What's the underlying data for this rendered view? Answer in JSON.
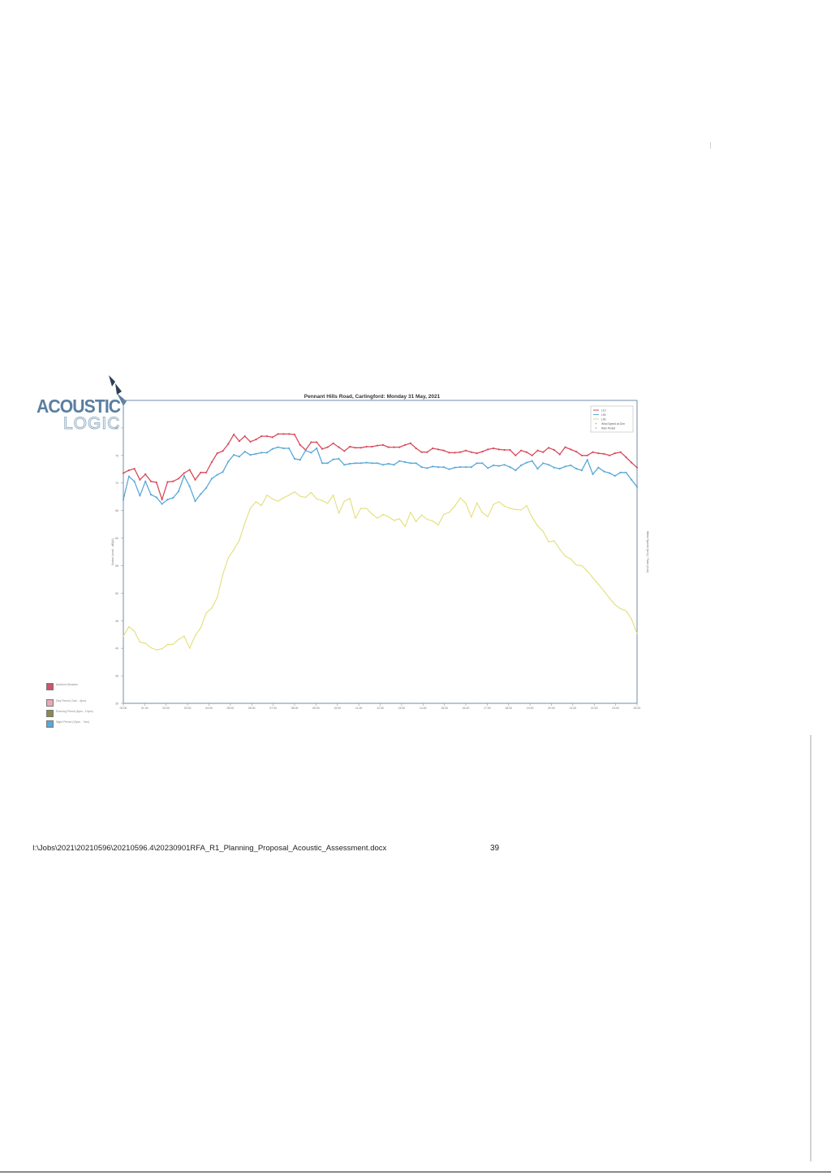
{
  "logo": {
    "line1": "ACOUSTIC",
    "line2": "LOGIC",
    "color": "#5a7fa0"
  },
  "footer": {
    "path": "I:\\Jobs\\2021\\20210596\\20210596.4\\20230901RFA_R1_Planning_Proposal_Acoustic_Assessment.docx",
    "page": "39"
  },
  "side_legend": [
    {
      "label": "Ambient Weather",
      "color": "#c9566b"
    },
    {
      "label": "Day Period (7am - 6pm)",
      "color": "#e8aab2"
    },
    {
      "label": "Evening Period (6pm - 10pm)",
      "color": "#8a8a50"
    },
    {
      "label": "Night Period (10pm - 7am)",
      "color": "#5aa8d8"
    }
  ],
  "chart_data": {
    "type": "line",
    "title": "Pennant Hills Road, Carlingford: Monday 31 May, 2021",
    "ylabel": "Noise Level - dB(A)",
    "y2label": "Wind Speed (m/s) / Rain (mm)",
    "ylim": [
      30,
      85
    ],
    "yticks": [
      30,
      35,
      40,
      45,
      50,
      55,
      60,
      65,
      70,
      75,
      80
    ],
    "xlim": [
      0,
      24
    ],
    "xticks": [
      "00:00",
      "01:00",
      "02:00",
      "03:00",
      "04:00",
      "05:00",
      "06:00",
      "07:00",
      "08:00",
      "09:00",
      "10:00",
      "11:00",
      "12:00",
      "13:00",
      "14:00",
      "15:00",
      "16:00",
      "17:00",
      "18:00",
      "19:00",
      "20:00",
      "21:00",
      "22:00",
      "23:00",
      "00:00"
    ],
    "legend_position": "top-right",
    "grid": false,
    "series": [
      {
        "name": "L10",
        "color": "#d94a5a",
        "values": [
          71.8,
          72.3,
          72.6,
          70.6,
          71.6,
          70.3,
          70.1,
          67.0,
          70.2,
          70.3,
          70.8,
          71.8,
          72.4,
          70.6,
          71.9,
          71.9,
          73.8,
          75.4,
          75.8,
          77.1,
          78.8,
          77.6,
          78.5,
          77.5,
          77.9,
          78.5,
          78.5,
          78.3,
          78.9,
          78.9,
          78.9,
          78.8,
          76.9,
          76.0,
          77.4,
          77.4,
          76.2,
          76.5,
          77.2,
          76.5,
          75.8,
          76.6,
          76.4,
          76.4,
          76.6,
          76.6,
          76.8,
          76.9,
          76.5,
          76.5,
          76.5,
          76.9,
          77.2,
          76.3,
          75.6,
          75.6,
          76.3,
          76.1,
          75.9,
          75.5,
          75.5,
          75.6,
          75.9,
          75.6,
          75.4,
          75.7,
          76.1,
          76.3,
          76.1,
          76.0,
          76.0,
          75.0,
          75.9,
          75.6,
          75.0,
          75.9,
          75.6,
          76.4,
          76.0,
          75.2,
          76.5,
          76.1,
          75.7,
          75.0,
          75.0,
          75.6,
          75.4,
          75.3,
          75.0,
          75.4,
          75.6,
          74.7,
          73.7,
          72.8
        ]
      },
      {
        "name": "L90",
        "color": "#5aa8d8",
        "values": [
          67.0,
          71.2,
          70.3,
          67.7,
          70.3,
          67.9,
          67.4,
          66.2,
          67.0,
          67.3,
          68.5,
          71.3,
          69.4,
          66.7,
          68.0,
          69.1,
          70.8,
          71.5,
          72.0,
          73.9,
          75.1,
          74.8,
          75.7,
          75.1,
          75.3,
          75.5,
          75.5,
          76.2,
          76.5,
          76.3,
          76.3,
          74.4,
          74.2,
          75.9,
          75.5,
          76.3,
          73.6,
          73.6,
          74.3,
          74.4,
          73.3,
          73.5,
          73.6,
          73.6,
          73.7,
          73.6,
          73.6,
          73.3,
          73.5,
          73.3,
          74.0,
          73.8,
          73.6,
          73.6,
          72.9,
          72.7,
          73.0,
          72.9,
          72.9,
          72.5,
          72.8,
          72.9,
          72.9,
          72.9,
          73.6,
          73.6,
          72.7,
          73.2,
          73.1,
          73.3,
          72.9,
          72.3,
          73.2,
          73.7,
          74.0,
          72.6,
          73.6,
          73.3,
          72.8,
          72.6,
          73.0,
          73.2,
          72.6,
          72.3,
          74.2,
          71.6,
          72.8,
          72.1,
          71.8,
          71.3,
          71.9,
          71.9,
          70.6,
          69.3
        ]
      },
      {
        "name": "L90",
        "color": "#e3de7a",
        "values": [
          42.2,
          43.9,
          43.1,
          41.1,
          40.9,
          40.1,
          39.7,
          39.9,
          40.7,
          40.7,
          41.6,
          42.2,
          40.0,
          42.3,
          43.7,
          46.4,
          47.3,
          49.2,
          53.4,
          56.4,
          57.9,
          59.6,
          62.7,
          65.4,
          66.6,
          65.9,
          67.8,
          67.1,
          66.7,
          67.3,
          67.8,
          68.4,
          67.6,
          67.4,
          68.3,
          67.1,
          66.8,
          66.3,
          67.8,
          64.5,
          66.7,
          67.2,
          63.6,
          65.4,
          65.4,
          64.4,
          63.6,
          64.3,
          63.9,
          63.2,
          63.5,
          62.1,
          64.7,
          63.0,
          64.2,
          63.4,
          63.1,
          62.4,
          64.3,
          64.7,
          65.8,
          67.3,
          66.3,
          63.8,
          66.4,
          64.6,
          63.9,
          66.1,
          66.6,
          65.8,
          65.4,
          65.2,
          65.1,
          65.9,
          63.8,
          62.2,
          61.2,
          59.3,
          59.5,
          58.0,
          56.7,
          56.2,
          55.1,
          55.0,
          54.0,
          52.8,
          51.6,
          50.4,
          49.1,
          47.9,
          47.2,
          46.8,
          45.3,
          42.7
        ]
      }
    ],
    "wind_speed": {
      "name": "Wind Speed at 10m",
      "color": "#9a9a9a",
      "y2lim": [
        0,
        10
      ]
    },
    "rain": {
      "name": "Rain Period",
      "color": "#9a9a9a"
    }
  }
}
